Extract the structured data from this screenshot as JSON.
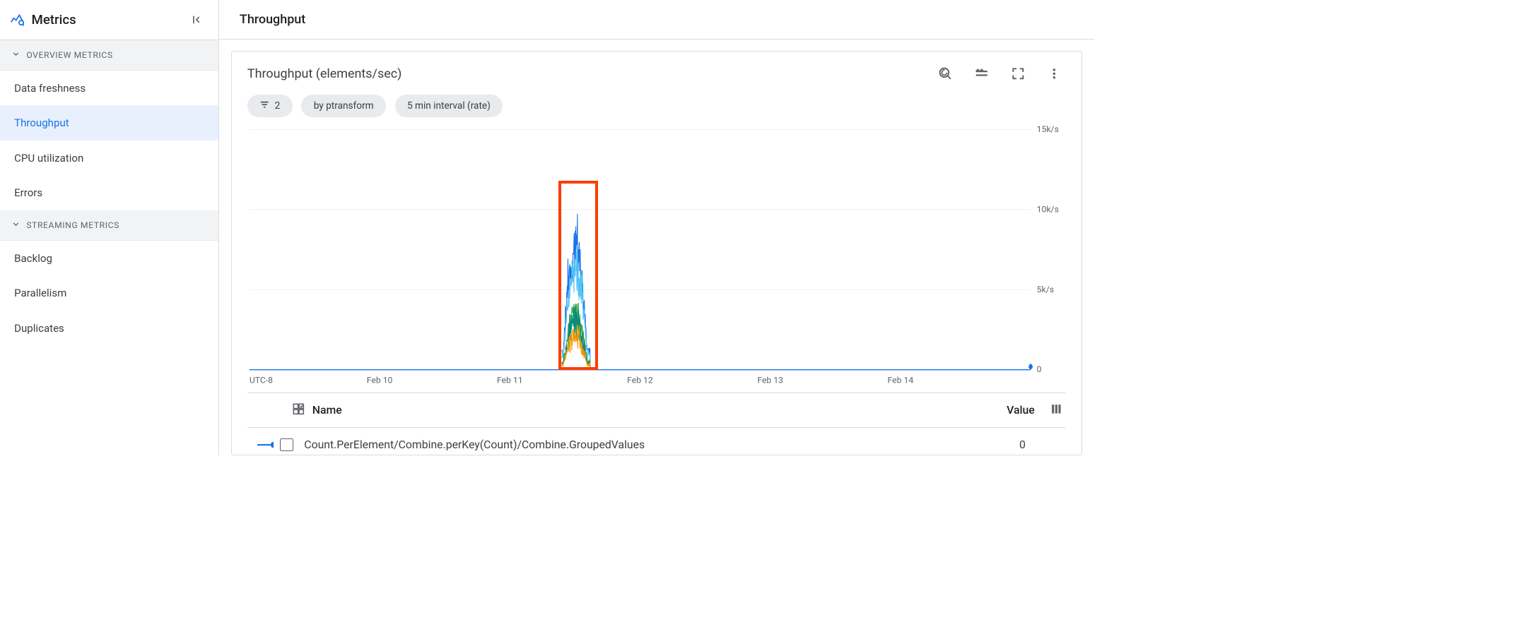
{
  "sidebar": {
    "title": "Metrics",
    "sections": [
      {
        "label": "Overview Metrics",
        "items": [
          {
            "label": "Data freshness",
            "active": false
          },
          {
            "label": "Throughput",
            "active": true
          },
          {
            "label": "CPU utilization",
            "active": false
          },
          {
            "label": "Errors",
            "active": false
          }
        ]
      },
      {
        "label": "Streaming Metrics",
        "items": [
          {
            "label": "Backlog",
            "active": false
          },
          {
            "label": "Parallelism",
            "active": false
          },
          {
            "label": "Duplicates",
            "active": false
          }
        ]
      }
    ]
  },
  "page": {
    "title": "Throughput"
  },
  "chart": {
    "title": "Throughput (elements/sec)",
    "type": "line",
    "chips": {
      "filter_count": "2",
      "group_by": "by ptransform",
      "interval": "5 min interval (rate)"
    },
    "timezone_label": "UTC-8",
    "x_ticks": [
      "Feb 10",
      "Feb 11",
      "Feb 12",
      "Feb 13",
      "Feb 14"
    ],
    "y_ticks": [
      {
        "value": 0,
        "label": "0"
      },
      {
        "value": 5000,
        "label": "5k/s"
      },
      {
        "value": 10000,
        "label": "10k/s"
      },
      {
        "value": 15000,
        "label": "15k/s"
      }
    ],
    "ylim": [
      0,
      15000
    ],
    "xlim_days": [
      0,
      5
    ],
    "grid_color": "#e8eaed",
    "axis_color": "#bdc1c6",
    "text_color": "#5f6368",
    "tick_fontsize": 17,
    "background_color": "#ffffff",
    "highlight_box": {
      "x_start_day": 1.98,
      "x_end_day": 2.23,
      "y_start": 0,
      "y_end": 11800,
      "border_color": "#ff3b00",
      "border_width": 6
    },
    "spike_region": {
      "x_start_day": 2.0,
      "x_end_day": 2.18
    },
    "series": [
      {
        "name": "series-blue-primary",
        "color": "#1a73e8",
        "line_width": 1.5,
        "peak_value": 11200,
        "typical_range": [
          4500,
          9200
        ]
      },
      {
        "name": "series-blue-light",
        "color": "#4fc3f7",
        "line_width": 1.5,
        "peak_value": 8800,
        "typical_range": [
          3500,
          7500
        ]
      },
      {
        "name": "series-green",
        "color": "#34a853",
        "line_width": 1.5,
        "peak_value": 4600,
        "typical_range": [
          1200,
          4200
        ]
      },
      {
        "name": "series-teal",
        "color": "#00897b",
        "line_width": 1.5,
        "peak_value": 4200,
        "typical_range": [
          900,
          3800
        ]
      },
      {
        "name": "series-orange",
        "color": "#f29900",
        "line_width": 1.5,
        "peak_value": 3200,
        "typical_range": [
          600,
          2800
        ]
      }
    ],
    "baseline_series": {
      "name": "baseline-flat",
      "color": "#1a73e8",
      "line_width": 2,
      "value": 0
    },
    "end_marker_color": "#1a73e8"
  },
  "legend": {
    "columns": {
      "name": "Name",
      "value": "Value"
    },
    "rows": [
      {
        "marker_color": "#1a73e8",
        "name": "Count.PerElement/Combine.perKey(Count)/Combine.GroupedValues",
        "value": "0",
        "checked": false
      }
    ]
  }
}
